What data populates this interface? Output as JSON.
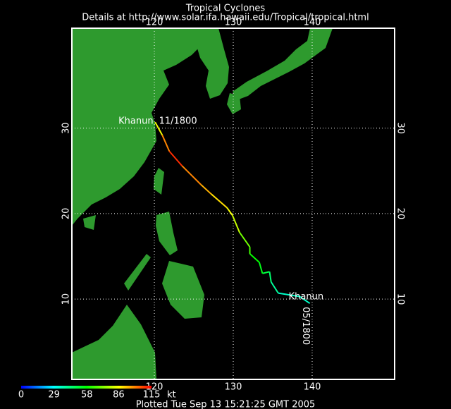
{
  "map": {
    "title": "Tropical Cyclones",
    "subtitle": "Details at http://www.solar.ifa.hawaii.edu/Tropical/tropical.html",
    "footer": "Plotted Tue Sep 13 15:21:25 GMT 2005",
    "lonlim": [
      109.55,
      150.45
    ],
    "latlim": [
      0.6,
      41.7
    ],
    "lonticks": [
      120,
      130,
      140
    ],
    "latticks": [
      10,
      20,
      30
    ],
    "grid": true,
    "colorbar": {
      "ticks": [
        0,
        29,
        58,
        86,
        115
      ],
      "unit": "kt"
    },
    "track": {
      "name": "Khanun",
      "start_label": "05/1800",
      "end_label": "11/1800",
      "lon": [
        139.7,
        138.4,
        135.7,
        134.8,
        134.6,
        133.7,
        133.3,
        132.1,
        132.1,
        130.8,
        129.9,
        129.2,
        127.2,
        125.9,
        123.5,
        121.9,
        121.0,
        120.1
      ],
      "lat": [
        9.5,
        10.3,
        10.7,
        12.0,
        13.2,
        13.0,
        14.3,
        15.3,
        16.1,
        17.8,
        19.8,
        20.7,
        22.3,
        23.4,
        25.6,
        27.3,
        29.2,
        30.7
      ],
      "wind": [
        35,
        35,
        40,
        45,
        50,
        55,
        58,
        65,
        70,
        80,
        85,
        90,
        95,
        100,
        110,
        100,
        85,
        70
      ]
    }
  }
}
